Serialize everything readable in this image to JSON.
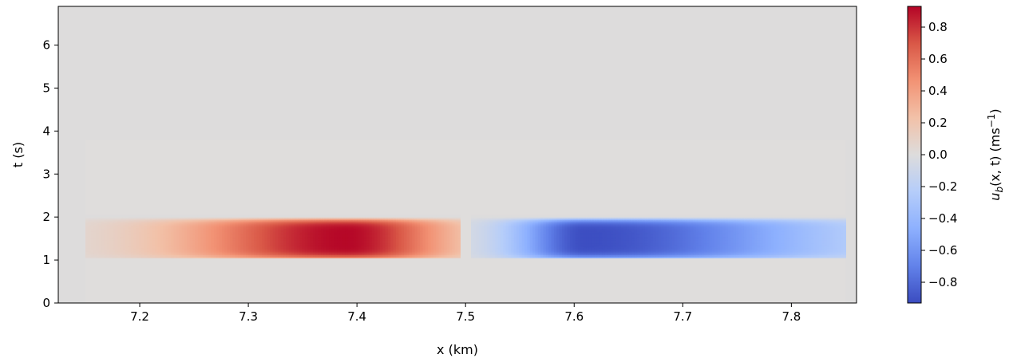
{
  "chart_data": {
    "type": "heatmap",
    "title": "",
    "xlabel": "x (km)",
    "ylabel": "t (s)",
    "colorbar_label": "u_b(x, t) (ms⁻¹)",
    "colorbar_label_parts": {
      "u": "u",
      "sub": "b",
      "args": "(x, t)",
      "unit_open": "(ms",
      "unit_sup": "−1",
      "unit_close": ")"
    },
    "colormap": "coolwarm",
    "xlim": [
      7.125,
      7.86
    ],
    "ylim": [
      0,
      6.9
    ],
    "x_ticks": [
      7.2,
      7.3,
      7.4,
      7.5,
      7.6,
      7.7,
      7.8
    ],
    "x_tick_labels": [
      "7.2",
      "7.3",
      "7.4",
      "7.5",
      "7.6",
      "7.7",
      "7.8"
    ],
    "y_ticks": [
      0,
      1,
      2,
      3,
      4,
      5,
      6
    ],
    "y_tick_labels": [
      "0",
      "1",
      "2",
      "3",
      "4",
      "5",
      "6"
    ],
    "clim": [
      -0.93,
      0.93
    ],
    "colorbar_ticks": [
      0.8,
      0.6,
      0.4,
      0.2,
      0.0,
      -0.2,
      -0.4,
      -0.6,
      -0.8
    ],
    "colorbar_tick_labels": [
      "0.8",
      "0.6",
      "0.4",
      "0.2",
      "0.0",
      "−0.2",
      "−0.4",
      "−0.6",
      "−0.8"
    ],
    "features": [
      {
        "sign": "positive",
        "x_start": 7.15,
        "x_end": 7.495,
        "x_peak": 7.39,
        "t_start": 1.05,
        "t_end": 2.05,
        "t_peak": 1.5,
        "peak_value": 0.92
      },
      {
        "sign": "negative",
        "x_start": 7.505,
        "x_end": 7.85,
        "x_peak": 7.61,
        "t_start": 1.05,
        "t_end": 2.05,
        "t_peak": 1.5,
        "peak_value": -0.92
      }
    ],
    "grid": false
  }
}
